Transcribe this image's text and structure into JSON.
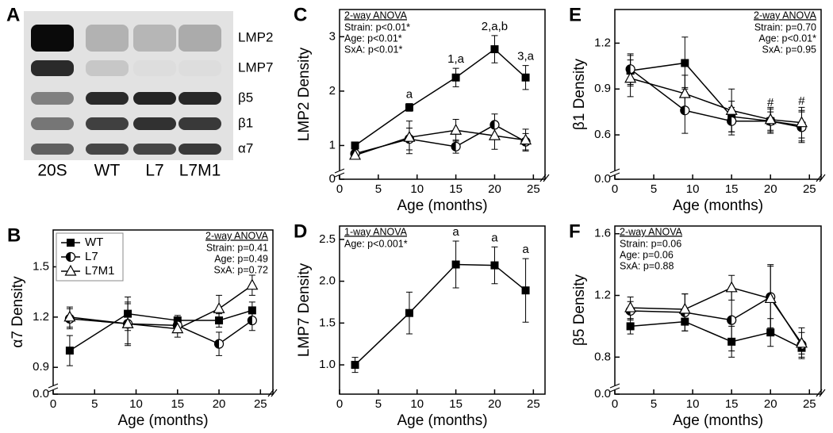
{
  "blot": {
    "panel": "A",
    "bands": [
      "LMP2",
      "LMP7",
      "β5",
      "β1",
      "α7"
    ],
    "lanes": [
      "20S",
      "WT",
      "L7",
      "L7M1"
    ]
  },
  "chart_data": [
    {
      "type": "line",
      "panel": "B",
      "ylabel": "α7 Density",
      "xlabel": "Age (months)",
      "x": [
        2,
        9,
        15,
        20,
        24
      ],
      "xlim": [
        0,
        26.5
      ],
      "xticks": [
        0,
        5,
        10,
        15,
        20,
        25
      ],
      "ylim": [
        0,
        1.72
      ],
      "ybreak": [
        0,
        0.74
      ],
      "yticks": [
        {
          "value": 0,
          "label": "0.0"
        },
        0.9,
        1.2,
        1.5
      ],
      "legend": true,
      "legend_corner": "top-left",
      "stats_corner": "top-right",
      "stats_title": "2-way ANOVA",
      "stats": [
        "Strain: p=0.41",
        "Age: p=0.49",
        "SxA: p=0.72"
      ],
      "series": [
        {
          "name": "WT",
          "color": "#000000",
          "marker": "square",
          "values": [
            1.0,
            1.22,
            1.18,
            1.18,
            1.24
          ],
          "errors": [
            0.09,
            0.1,
            0.03,
            0.04,
            0.05
          ]
        },
        {
          "name": "L7",
          "color": "#000000",
          "marker": "half-circle",
          "values": [
            1.19,
            1.16,
            1.15,
            1.04,
            1.18
          ],
          "errors": [
            0.06,
            0.12,
            0.04,
            0.07,
            0.06
          ]
        },
        {
          "name": "L7M1",
          "color": "#000000",
          "marker": "triangle",
          "values": [
            1.2,
            1.16,
            1.13,
            1.25,
            1.39
          ],
          "errors": [
            0.06,
            0.13,
            0.05,
            0.08,
            0.06
          ]
        }
      ]
    },
    {
      "type": "line",
      "panel": "C",
      "ylabel": "LMP2 Density",
      "xlabel": "Age (months)",
      "x": [
        2,
        9,
        15,
        20,
        24
      ],
      "xlim": [
        0,
        26.5
      ],
      "xticks": [
        0,
        5,
        10,
        15,
        20,
        25
      ],
      "ylim": [
        0,
        3.5
      ],
      "ybreak": [
        0,
        0.38
      ],
      "yticks": [
        0,
        1,
        2,
        3
      ],
      "legend": false,
      "stats_corner": "top-left",
      "stats_title": "2-way ANOVA",
      "stats": [
        "Strain: p<0.01*",
        "Age: p<0.01*",
        "SxA: p<0.01*"
      ],
      "series": [
        {
          "name": "WT",
          "color": "#000000",
          "marker": "square",
          "values": [
            1.0,
            1.7,
            2.25,
            2.77,
            2.25
          ],
          "errors": [
            0.05,
            0.07,
            0.17,
            0.25,
            0.22
          ],
          "point_labels": [
            null,
            "a",
            "1,a",
            "2,a,b",
            "3,a"
          ]
        },
        {
          "name": "L7",
          "color": "#000000",
          "marker": "half-circle",
          "values": [
            0.85,
            1.12,
            0.98,
            1.38,
            1.07
          ],
          "errors": [
            0.05,
            0.2,
            0.12,
            0.2,
            0.15
          ]
        },
        {
          "name": "L7M1",
          "color": "#000000",
          "marker": "triangle",
          "values": [
            0.82,
            1.15,
            1.28,
            1.18,
            1.1
          ],
          "errors": [
            0.06,
            0.3,
            0.2,
            0.25,
            0.2
          ]
        }
      ]
    },
    {
      "type": "line",
      "panel": "D",
      "ylabel": "LMP7 Density",
      "xlabel": "Age (months)",
      "x": [
        2,
        9,
        15,
        20,
        24
      ],
      "xlim": [
        0,
        26.5
      ],
      "xticks": [
        0,
        5,
        10,
        15,
        20,
        25
      ],
      "ylim": [
        0.65,
        2.66
      ],
      "yticks": [
        {
          "value": 1,
          "label": "1.0"
        },
        1.5,
        {
          "value": 2,
          "label": "2.0"
        },
        2.5
      ],
      "legend": false,
      "stats_corner": "top-left",
      "stats_title": "1-way ANOVA",
      "stats": [
        "Age: p<0.001*"
      ],
      "series": [
        {
          "name": "WT",
          "color": "#000000",
          "marker": "square",
          "values": [
            1.0,
            1.62,
            2.2,
            2.19,
            1.89
          ],
          "errors": [
            0.09,
            0.25,
            0.28,
            0.22,
            0.38
          ],
          "point_labels": [
            null,
            null,
            "a",
            "a",
            "a"
          ]
        }
      ]
    },
    {
      "type": "line",
      "panel": "E",
      "ylabel": "β1 Density",
      "xlabel": "Age (months)",
      "x": [
        2,
        9,
        15,
        20,
        24
      ],
      "xlim": [
        0,
        26.5
      ],
      "xticks": [
        0,
        5,
        10,
        15,
        20,
        25
      ],
      "ylim": [
        0,
        1.42
      ],
      "ybreak": [
        0,
        0.31
      ],
      "yticks": [
        {
          "value": 0,
          "label": "0.0"
        },
        0.6,
        0.9,
        1.2
      ],
      "legend": false,
      "stats_corner": "top-right",
      "stats_title": "2-way ANOVA",
      "stats": [
        "Strain: p=0.70",
        "Age: p<0.01*",
        "SxA: p=0.95"
      ],
      "series": [
        {
          "name": "WT",
          "color": "#000000",
          "marker": "square",
          "values": [
            1.02,
            1.07,
            0.72,
            0.69,
            0.66
          ],
          "errors": [
            0.1,
            0.17,
            0.1,
            0.06,
            0.1
          ],
          "point_labels": [
            null,
            null,
            null,
            "#",
            "#"
          ]
        },
        {
          "name": "L7",
          "color": "#000000",
          "marker": "half-circle",
          "values": [
            1.03,
            0.76,
            0.69,
            0.69,
            0.65
          ],
          "errors": [
            0.1,
            0.15,
            0.09,
            0.08,
            0.1
          ]
        },
        {
          "name": "L7M1",
          "color": "#000000",
          "marker": "triangle",
          "values": [
            0.97,
            0.87,
            0.76,
            0.7,
            0.68
          ],
          "errors": [
            0.12,
            0.12,
            0.14,
            0.08,
            0.1
          ]
        }
      ]
    },
    {
      "type": "line",
      "panel": "F",
      "ylabel": "β5 Density",
      "xlabel": "Age (months)",
      "x": [
        2,
        9,
        15,
        20,
        24
      ],
      "xlim": [
        0,
        26.5
      ],
      "xticks": [
        0,
        5,
        10,
        15,
        20,
        25
      ],
      "ylim": [
        0,
        1.65
      ],
      "ybreak": [
        0,
        0.56
      ],
      "yticks": [
        {
          "value": 0,
          "label": "0.0"
        },
        0.8,
        1.2,
        1.6
      ],
      "legend": false,
      "stats_corner": "top-left",
      "stats_title": "2-way ANOVA",
      "stats": [
        "Strain: p=0.06",
        "Age: p=0.06",
        "SxA: p=0.88"
      ],
      "series": [
        {
          "name": "WT",
          "color": "#000000",
          "marker": "square",
          "values": [
            1.0,
            1.03,
            0.9,
            0.96,
            0.86
          ],
          "errors": [
            0.05,
            0.06,
            0.1,
            0.09,
            0.04
          ]
        },
        {
          "name": "L7",
          "color": "#000000",
          "marker": "half-circle",
          "values": [
            1.1,
            1.09,
            1.04,
            1.19,
            0.88
          ],
          "errors": [
            0.06,
            0.12,
            0.2,
            0.2,
            0.08
          ]
        },
        {
          "name": "L7M1",
          "color": "#000000",
          "marker": "triangle",
          "values": [
            1.12,
            1.11,
            1.25,
            1.18,
            0.89
          ],
          "errors": [
            0.07,
            0.1,
            0.08,
            0.22,
            0.1
          ]
        }
      ]
    }
  ]
}
